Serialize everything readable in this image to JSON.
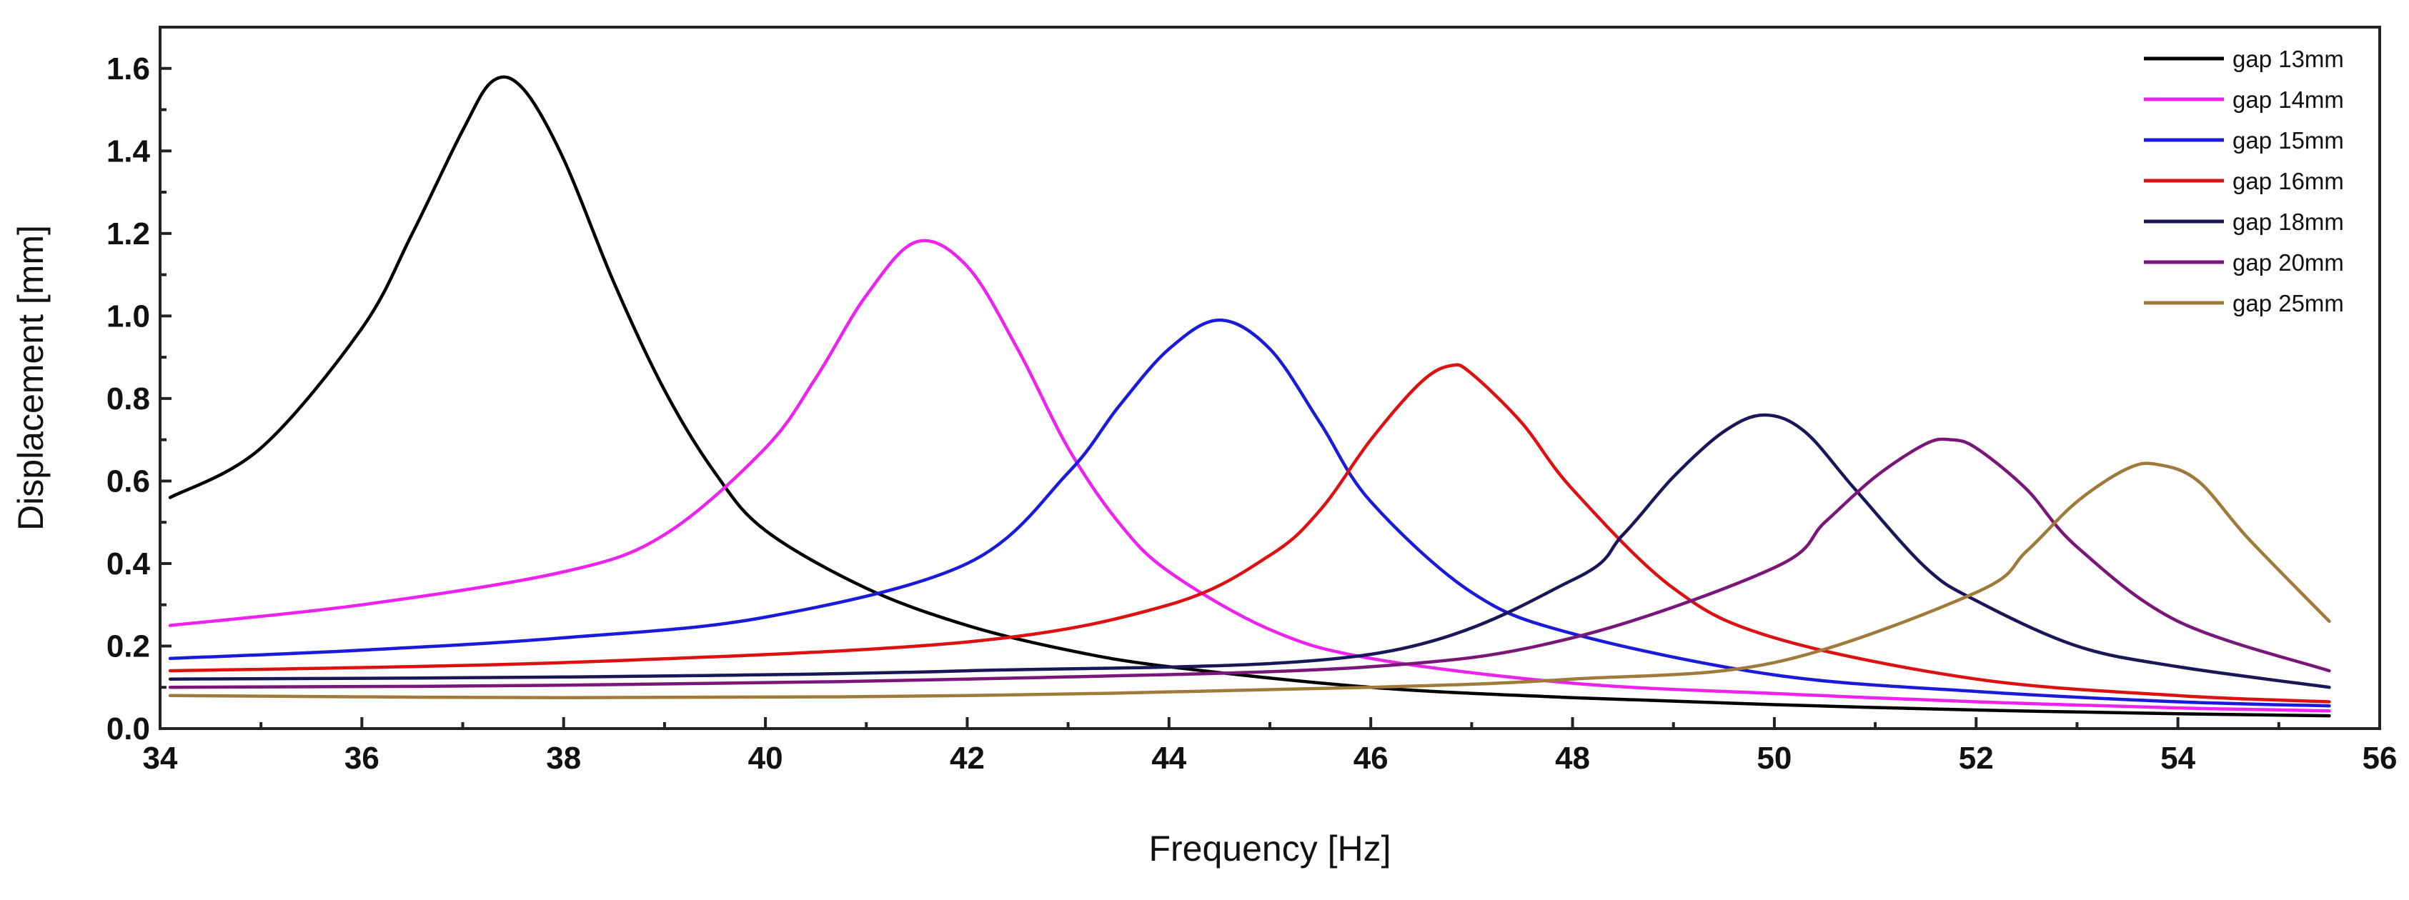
{
  "chart_data": {
    "type": "line",
    "title": "",
    "xlabel": "Frequency [Hz]",
    "ylabel": "Displacement [mm]",
    "xlim": [
      34,
      56
    ],
    "ylim": [
      0.0,
      1.7
    ],
    "x_ticks": [
      34,
      36,
      38,
      40,
      42,
      44,
      46,
      48,
      50,
      52,
      54,
      56
    ],
    "y_ticks": [
      0.0,
      0.2,
      0.4,
      0.6,
      0.8,
      1.0,
      1.2,
      1.4,
      1.6
    ],
    "x_tick_labels": [
      "34",
      "36",
      "38",
      "40",
      "42",
      "44",
      "46",
      "48",
      "50",
      "52",
      "54",
      "56"
    ],
    "y_tick_labels": [
      "0.0",
      "0.2",
      "0.4",
      "0.6",
      "0.8",
      "1.0",
      "1.2",
      "1.4",
      "1.6"
    ],
    "grid": false,
    "legend_position": "top-right",
    "series": [
      {
        "name": "gap 13mm",
        "color": "#000000",
        "x": [
          34.1,
          35,
          36,
          36.5,
          37,
          37.3,
          37.6,
          38,
          38.5,
          39,
          39.5,
          40,
          41,
          42,
          43,
          44,
          46,
          48,
          50,
          52,
          54,
          55.5
        ],
        "y": [
          0.56,
          0.68,
          0.97,
          1.2,
          1.45,
          1.57,
          1.55,
          1.38,
          1.08,
          0.82,
          0.62,
          0.48,
          0.34,
          0.25,
          0.19,
          0.15,
          0.1,
          0.075,
          0.058,
          0.045,
          0.036,
          0.031
        ]
      },
      {
        "name": "gap 14mm",
        "color": "#ee22ee",
        "x": [
          34.1,
          36,
          38,
          39,
          40,
          40.5,
          41,
          41.5,
          42,
          42.5,
          43,
          43.5,
          44,
          45,
          46,
          48,
          50,
          52,
          54,
          55.5
        ],
        "y": [
          0.25,
          0.3,
          0.38,
          0.47,
          0.68,
          0.85,
          1.05,
          1.18,
          1.12,
          0.92,
          0.68,
          0.5,
          0.38,
          0.24,
          0.17,
          0.11,
          0.085,
          0.065,
          0.05,
          0.043
        ]
      },
      {
        "name": "gap 15mm",
        "color": "#1a1adb",
        "x": [
          34.1,
          36,
          38,
          40,
          42,
          43,
          43.5,
          44,
          44.5,
          45,
          45.5,
          46,
          47,
          48,
          50,
          52,
          54,
          55.5
        ],
        "y": [
          0.17,
          0.19,
          0.22,
          0.27,
          0.4,
          0.62,
          0.78,
          0.92,
          0.99,
          0.92,
          0.74,
          0.55,
          0.33,
          0.23,
          0.13,
          0.09,
          0.065,
          0.055
        ]
      },
      {
        "name": "gap 16mm",
        "color": "#dd1111",
        "x": [
          34.1,
          38,
          42,
          44,
          45,
          45.5,
          46,
          46.5,
          46.8,
          47,
          47.5,
          48,
          49,
          50,
          52,
          54,
          55.5
        ],
        "y": [
          0.14,
          0.16,
          0.21,
          0.3,
          0.42,
          0.53,
          0.7,
          0.84,
          0.88,
          0.86,
          0.74,
          0.58,
          0.34,
          0.22,
          0.12,
          0.08,
          0.065
        ]
      },
      {
        "name": "gap 18mm",
        "color": "#181858",
        "x": [
          34.1,
          38,
          42,
          46,
          48,
          48.5,
          49,
          49.5,
          49.9,
          50.3,
          50.8,
          51.5,
          52,
          53,
          54,
          55.5
        ],
        "y": [
          0.12,
          0.125,
          0.14,
          0.18,
          0.36,
          0.47,
          0.61,
          0.72,
          0.76,
          0.72,
          0.58,
          0.39,
          0.31,
          0.2,
          0.15,
          0.1
        ]
      },
      {
        "name": "gap 20mm",
        "color": "#7a167a",
        "x": [
          34.1,
          38,
          42,
          46,
          48,
          50,
          50.5,
          51,
          51.5,
          51.75,
          52,
          52.5,
          53,
          54,
          55.5
        ],
        "y": [
          0.1,
          0.105,
          0.12,
          0.15,
          0.22,
          0.39,
          0.5,
          0.61,
          0.69,
          0.7,
          0.68,
          0.58,
          0.44,
          0.26,
          0.14
        ]
      },
      {
        "name": "gap 25mm",
        "color": "#a07a3a",
        "x": [
          34.1,
          38,
          42,
          46,
          48,
          50,
          52,
          52.5,
          53,
          53.5,
          53.8,
          54.2,
          54.7,
          55.5
        ],
        "y": [
          0.08,
          0.075,
          0.08,
          0.1,
          0.12,
          0.16,
          0.33,
          0.43,
          0.55,
          0.63,
          0.64,
          0.6,
          0.46,
          0.26
        ]
      }
    ]
  }
}
